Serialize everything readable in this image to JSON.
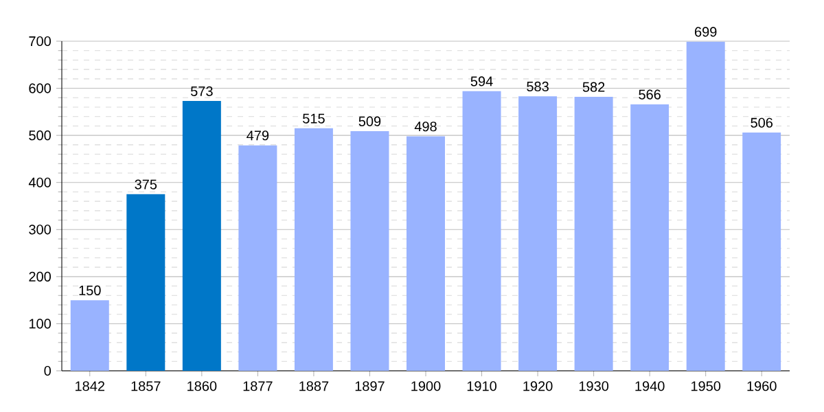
{
  "chart_data": {
    "type": "bar",
    "categories": [
      "1842",
      "1857",
      "1860",
      "1877",
      "1887",
      "1897",
      "1900",
      "1910",
      "1920",
      "1930",
      "1940",
      "1950",
      "1960"
    ],
    "values": [
      150,
      375,
      573,
      479,
      515,
      509,
      498,
      594,
      583,
      582,
      566,
      699,
      506
    ],
    "colors": [
      "#99b3ff",
      "#0077c8",
      "#0077c8",
      "#99b3ff",
      "#99b3ff",
      "#99b3ff",
      "#99b3ff",
      "#99b3ff",
      "#99b3ff",
      "#99b3ff",
      "#99b3ff",
      "#99b3ff",
      "#99b3ff"
    ],
    "ylim": [
      0,
      700
    ],
    "yticks": [
      0,
      {
        "value": 20,
        "label": null
      },
      {
        "value": 40,
        "label": null
      },
      {
        "value": 60,
        "label": null
      },
      {
        "value": 80,
        "label": null
      },
      100,
      {
        "value": 120,
        "label": null
      },
      {
        "value": 140,
        "label": null
      },
      {
        "value": 160,
        "label": null
      },
      {
        "value": 180,
        "label": null
      },
      200,
      {
        "value": 220,
        "label": null
      },
      {
        "value": 240,
        "label": null
      },
      {
        "value": 260,
        "label": null
      },
      {
        "value": 280,
        "label": null
      },
      300,
      {
        "value": 320,
        "label": null
      },
      {
        "value": 340,
        "label": null
      },
      {
        "value": 360,
        "label": null
      },
      {
        "value": 380,
        "label": null
      },
      400,
      {
        "value": 420,
        "label": null
      },
      {
        "value": 440,
        "label": null
      },
      {
        "value": 460,
        "label": null
      },
      {
        "value": 480,
        "label": null
      },
      500,
      {
        "value": 520,
        "label": null
      },
      {
        "value": 540,
        "label": null
      },
      {
        "value": 560,
        "label": null
      },
      {
        "value": 580,
        "label": null
      },
      600,
      {
        "value": 620,
        "label": null
      },
      {
        "value": 640,
        "label": null
      },
      {
        "value": 660,
        "label": null
      },
      {
        "value": 680,
        "label": null
      },
      700
    ],
    "grid": "y",
    "data_labels": true
  }
}
